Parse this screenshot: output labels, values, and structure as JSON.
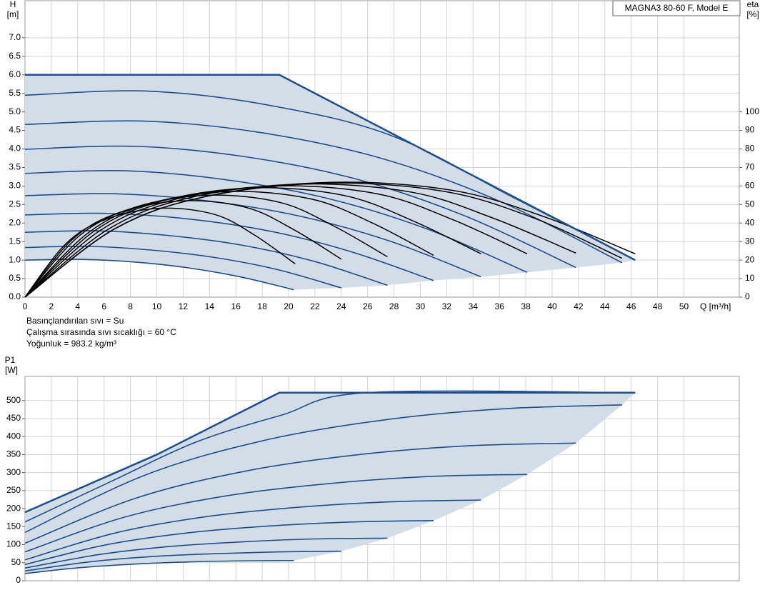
{
  "chart_data": [
    {
      "type": "line",
      "title": "MAGNA3 80-60 F, Model E",
      "ylabel": "H",
      "yunit": "[m]",
      "y2label": "eta",
      "y2unit": "[%]",
      "xlabel": "Q [m³/h]",
      "notes": [
        "Basınçlandırılan sıvı = Su",
        "Çalışma sırasında sıvı sıcaklığı = 60 °C",
        "Yoğunluk = 983.2 kg/m³"
      ],
      "xlim": [
        0,
        54.2
      ],
      "xticks": [
        0,
        2,
        4,
        6,
        8,
        10,
        12,
        14,
        16,
        18,
        20,
        22,
        24,
        26,
        28,
        30,
        32,
        34,
        36,
        38,
        40,
        42,
        44,
        46,
        48,
        50
      ],
      "xtick_labels": true,
      "ylim": [
        0,
        8
      ],
      "yticks": [
        {
          "value": 0,
          "label": "0.0"
        },
        {
          "value": 0.5,
          "label": "0.5"
        },
        {
          "value": 1,
          "label": "1.0"
        },
        {
          "value": 1.5,
          "label": "1.5"
        },
        {
          "value": 2,
          "label": "2.0"
        },
        {
          "value": 2.5,
          "label": "2.5"
        },
        {
          "value": 3,
          "label": "3.0"
        },
        {
          "value": 3.5,
          "label": "3.5"
        },
        {
          "value": 4,
          "label": "4.0"
        },
        {
          "value": 4.5,
          "label": "4.5"
        },
        {
          "value": 5,
          "label": "5.0"
        },
        {
          "value": 5.5,
          "label": "5.5"
        },
        {
          "value": 6,
          "label": "6.0"
        },
        {
          "value": 6.5,
          "label": "6.5"
        },
        {
          "value": 7,
          "label": "7.0"
        }
      ],
      "y2lim": [
        0,
        160
      ],
      "y2ticks": [
        0,
        10,
        20,
        30,
        40,
        50,
        60,
        70,
        80,
        90,
        100
      ],
      "grid": true,
      "fill_color": "#d3dde8",
      "limit_curve": {
        "color": "#1f4e8c",
        "x": [
          0,
          19.3,
          46.3
        ],
        "values": [
          6,
          6,
          1
        ]
      },
      "series": [
        {
          "color": "#1f4e8c",
          "x": [
            0,
            4.1,
            8.2,
            12.2,
            16.3,
            20.4
          ],
          "values": [
            1.0,
            1.02,
            0.95,
            0.8,
            0.55,
            0.2
          ]
        },
        {
          "color": "#1f4e8c",
          "x": [
            0,
            4.8,
            9.6,
            14.4,
            19.2,
            24
          ],
          "values": [
            1.34,
            1.37,
            1.27,
            1.07,
            0.74,
            0.25
          ]
        },
        {
          "color": "#1f4e8c",
          "x": [
            0,
            5.5,
            11,
            16.5,
            22,
            27.5
          ],
          "values": [
            1.75,
            1.79,
            1.66,
            1.4,
            0.96,
            0.32
          ]
        },
        {
          "color": "#1f4e8c",
          "x": [
            0,
            6.2,
            12.4,
            18.6,
            24.8,
            31
          ],
          "values": [
            2.22,
            2.26,
            2.11,
            1.78,
            1.22,
            0.45
          ]
        },
        {
          "color": "#1f4e8c",
          "x": [
            0,
            6.9,
            13.8,
            20.8,
            27.7,
            34.6
          ],
          "values": [
            2.74,
            2.79,
            2.6,
            2.19,
            1.51,
            0.55
          ]
        },
        {
          "color": "#1f4e8c",
          "x": [
            0,
            7.6,
            15.2,
            22.9,
            30.5,
            38.1
          ],
          "values": [
            3.34,
            3.41,
            3.17,
            2.67,
            1.84,
            0.67
          ]
        },
        {
          "color": "#1f4e8c",
          "x": [
            0,
            8.4,
            16.7,
            25.1,
            33.4,
            41.8
          ],
          "values": [
            3.99,
            4.07,
            3.79,
            3.19,
            2.19,
            0.8
          ]
        },
        {
          "color": "#1f4e8c",
          "x": [
            0,
            9.1,
            18.1,
            27.2,
            36.2,
            45.3
          ],
          "values": [
            4.66,
            4.75,
            4.43,
            3.73,
            2.56,
            0.93
          ]
        },
        {
          "color": "#1f4e8c",
          "x": [
            0,
            9.3,
            18.5,
            27.8,
            37,
            46.3
          ],
          "values": [
            5.45,
            5.56,
            5.18,
            4.36,
            2.7,
            1.0
          ]
        },
        {
          "color": "#000000",
          "axis": "y2",
          "x": [
            0,
            3.1,
            6.2,
            10.3,
            14.4,
            17.4,
            20.5
          ],
          "values": [
            0,
            28.8,
            42.2,
            48,
            44.6,
            33.6,
            18
          ]
        },
        {
          "color": "#000000",
          "axis": "y2",
          "x": [
            0,
            3.6,
            7.2,
            12,
            16.8,
            20.4,
            24
          ],
          "values": [
            0,
            31.2,
            45.8,
            52,
            48.4,
            36.4,
            20.5
          ]
        },
        {
          "color": "#000000",
          "axis": "y2",
          "x": [
            0,
            4.1,
            8.3,
            13.8,
            19.3,
            23.4,
            27.5
          ],
          "values": [
            0,
            33,
            48.4,
            55,
            51.2,
            38.5,
            21.8
          ]
        },
        {
          "color": "#000000",
          "axis": "y2",
          "x": [
            0,
            4.7,
            9.3,
            15.5,
            21.7,
            26.4,
            31
          ],
          "values": [
            0,
            34.2,
            50.2,
            57,
            53,
            39.9,
            22.6
          ]
        },
        {
          "color": "#000000",
          "axis": "y2",
          "x": [
            0,
            5.2,
            10.4,
            17.3,
            24.2,
            29.4,
            34.6
          ],
          "values": [
            0,
            35.4,
            51.9,
            59,
            54.9,
            41.3,
            23.4
          ]
        },
        {
          "color": "#000000",
          "axis": "y2",
          "x": [
            0,
            5.7,
            11.4,
            19.1,
            26.7,
            32.4,
            38.1
          ],
          "values": [
            0,
            36,
            52.8,
            60,
            55.8,
            42,
            23.4
          ]
        },
        {
          "color": "#000000",
          "axis": "y2",
          "x": [
            0,
            6.3,
            12.5,
            20.9,
            29.3,
            35.5,
            41.8
          ],
          "values": [
            0,
            36.6,
            53.7,
            61,
            56.7,
            42.7,
            23.8
          ]
        },
        {
          "color": "#000000",
          "axis": "y2",
          "x": [
            0,
            6.8,
            13.6,
            22.7,
            31.7,
            38.5,
            45.3
          ],
          "values": [
            0,
            36.9,
            54.1,
            61.5,
            57.2,
            43,
            21
          ]
        },
        {
          "color": "#000000",
          "axis": "y2",
          "x": [
            0,
            6.9,
            13.9,
            23.2,
            32.4,
            39.4,
            46.3
          ],
          "values": [
            0,
            37.2,
            54.6,
            62,
            57.7,
            43.4,
            23.4
          ]
        }
      ]
    },
    {
      "type": "line",
      "ylabel": "P1",
      "yunit": "[W]",
      "xlim": [
        0,
        54.2
      ],
      "xticks": [
        0,
        2,
        4,
        6,
        8,
        10,
        12,
        14,
        16,
        18,
        20,
        22,
        24,
        26,
        28,
        30,
        32,
        34,
        36,
        38,
        40,
        42,
        44,
        46,
        48,
        50
      ],
      "xtick_labels": false,
      "ylim": [
        0,
        567
      ],
      "yticks": [
        0,
        50,
        100,
        150,
        200,
        250,
        300,
        350,
        400,
        450,
        500
      ],
      "grid": true,
      "fill_color": "#d3dde8",
      "limit_curve": {
        "color": "#1f4e8c",
        "x": [
          0,
          10,
          19.3,
          46.3
        ],
        "values": [
          190,
          350,
          522,
          522
        ]
      },
      "series": [
        {
          "color": "#1f4e8c",
          "x": [
            0,
            4.1,
            8.2,
            12.2,
            16.3,
            20.4
          ],
          "values": [
            20,
            36,
            46,
            52,
            55,
            56
          ]
        },
        {
          "color": "#1f4e8c",
          "x": [
            0,
            4.8,
            9.6,
            14.4,
            19.2,
            24
          ],
          "values": [
            27,
            52,
            67,
            75,
            80,
            82
          ]
        },
        {
          "color": "#1f4e8c",
          "x": [
            0,
            5.5,
            11,
            16.5,
            22,
            27.5
          ],
          "values": [
            35,
            72,
            95,
            108,
            116,
            118
          ]
        },
        {
          "color": "#1f4e8c",
          "x": [
            0,
            6.2,
            12.4,
            18.6,
            24.8,
            31
          ],
          "values": [
            45,
            100,
            133,
            152,
            163,
            167
          ]
        },
        {
          "color": "#1f4e8c",
          "x": [
            0,
            6.9,
            13.8,
            20.8,
            27.7,
            34.6
          ],
          "values": [
            58,
            133,
            178,
            204,
            219,
            224
          ]
        },
        {
          "color": "#1f4e8c",
          "x": [
            0,
            7.6,
            15.2,
            22.9,
            30.5,
            38.1
          ],
          "values": [
            80,
            177,
            235,
            269,
            289,
            295
          ]
        },
        {
          "color": "#1f4e8c",
          "x": [
            0,
            8.4,
            16.7,
            25.1,
            33.4,
            41.8
          ],
          "values": [
            104,
            229,
            304,
            349,
            374,
            382
          ]
        },
        {
          "color": "#1f4e8c",
          "x": [
            0,
            9.1,
            18.1,
            27.2,
            36.2,
            45.3
          ],
          "values": [
            134,
            293,
            389,
            446,
            477,
            488
          ]
        },
        {
          "color": "#1f4e8c",
          "x": [
            0,
            6.5,
            13,
            19.5,
            26,
            46.3
          ],
          "values": [
            163,
            275,
            385,
            460,
            522,
            522
          ]
        }
      ]
    }
  ]
}
